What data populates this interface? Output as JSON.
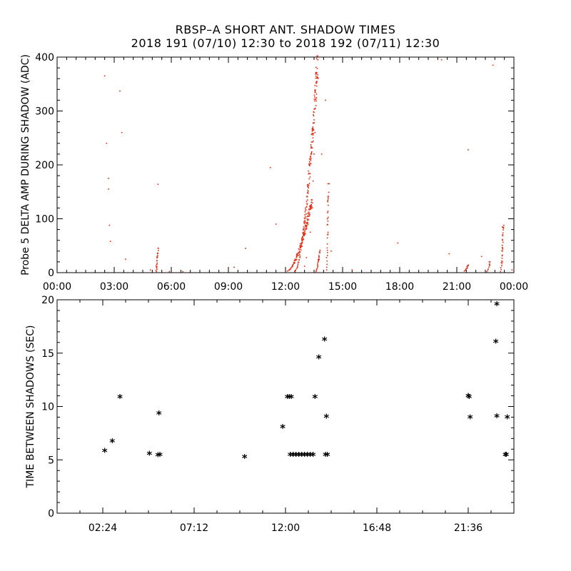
{
  "title_line1": "RBSP–A SHORT ANT. SHADOW TIMES",
  "title_line2": "2018 191 (07/10) 12:30 to 2018 192 (07/11) 12:30",
  "colors": {
    "top_points": "#e8290f",
    "bottom_points": "#000000",
    "axes": "#000000"
  },
  "chart_data": [
    {
      "type": "scatter",
      "ylabel": "Probe 5 DELTA AMP DURING SHADOW (ADC)",
      "xlim": [
        0,
        24
      ],
      "ylim": [
        0,
        400
      ],
      "x_ticks": [
        "00:00",
        "03:00",
        "06:00",
        "09:00",
        "12:00",
        "15:00",
        "18:00",
        "21:00",
        "00:00"
      ],
      "y_ticks": [
        0,
        100,
        200,
        300,
        400
      ],
      "marker": "dot",
      "points": [
        [
          2.5,
          365
        ],
        [
          2.6,
          240
        ],
        [
          2.7,
          175
        ],
        [
          2.7,
          155
        ],
        [
          2.75,
          88
        ],
        [
          2.8,
          58
        ],
        [
          3.3,
          337
        ],
        [
          3.4,
          260
        ],
        [
          3.6,
          25
        ],
        [
          4.9,
          5
        ],
        [
          5.3,
          164
        ],
        [
          5.2,
          12
        ],
        [
          5.9,
          2
        ],
        [
          6.6,
          2
        ],
        [
          9.9,
          45
        ],
        [
          11.2,
          195
        ],
        [
          11.5,
          90
        ],
        [
          9.3,
          10
        ],
        [
          13.0,
          12
        ],
        [
          13.1,
          28
        ],
        [
          13.3,
          75
        ],
        [
          13.4,
          120
        ],
        [
          13.45,
          170
        ],
        [
          13.5,
          220
        ],
        [
          13.55,
          260
        ],
        [
          13.6,
          310
        ],
        [
          13.65,
          355
        ],
        [
          13.7,
          395
        ],
        [
          14.1,
          320
        ],
        [
          13.9,
          220
        ],
        [
          14.3,
          165
        ],
        [
          14.2,
          100
        ],
        [
          14.4,
          40
        ],
        [
          15.5,
          5
        ],
        [
          17.9,
          55
        ],
        [
          20.2,
          395
        ],
        [
          20.6,
          35
        ],
        [
          21.6,
          228
        ],
        [
          22.3,
          30
        ],
        [
          22.7,
          20
        ],
        [
          22.9,
          385
        ],
        [
          23.4,
          85
        ],
        [
          23.4,
          60
        ],
        [
          23.4,
          40
        ],
        [
          23.4,
          20
        ],
        [
          23.9,
          5
        ]
      ],
      "clusters": [
        {
          "x_start": 5.2,
          "x_end": 5.3,
          "y_start": 2,
          "y_end": 47,
          "n": 20
        },
        {
          "x_start": 12.1,
          "x_end": 13.4,
          "y_start": 3,
          "y_end": 135,
          "n": 120
        },
        {
          "x_start": 12.5,
          "x_end": 13.7,
          "y_start": 2,
          "y_end": 402,
          "n": 170
        },
        {
          "x_start": 13.6,
          "x_end": 13.8,
          "y_start": 2,
          "y_end": 42,
          "n": 20
        },
        {
          "x_start": 14.15,
          "x_end": 14.25,
          "y_start": 5,
          "y_end": 165,
          "n": 30
        },
        {
          "x_start": 21.4,
          "x_end": 21.6,
          "y_start": 3,
          "y_end": 15,
          "n": 10
        },
        {
          "x_start": 22.6,
          "x_end": 22.75,
          "y_start": 2,
          "y_end": 20,
          "n": 8
        },
        {
          "x_start": 23.3,
          "x_end": 23.45,
          "y_start": 2,
          "y_end": 88,
          "n": 25
        }
      ]
    },
    {
      "type": "scatter",
      "ylabel": "TIME BETWEEN SHADOWS (SEC)",
      "xlim": [
        0,
        24
      ],
      "ylim": [
        0,
        20
      ],
      "x_tick_values": [
        2.4,
        7.2,
        12.0,
        16.8,
        21.6
      ],
      "x_ticks": [
        "02:24",
        "07:12",
        "12:00",
        "16:48",
        "21:36"
      ],
      "y_ticks": [
        0,
        5,
        10,
        15,
        20
      ],
      "marker": "asterisk",
      "points": [
        [
          2.5,
          5.85
        ],
        [
          2.9,
          6.75
        ],
        [
          3.3,
          10.9
        ],
        [
          4.85,
          5.6
        ],
        [
          5.35,
          9.35
        ],
        [
          5.3,
          5.45
        ],
        [
          5.4,
          5.5
        ],
        [
          9.85,
          5.3
        ],
        [
          11.85,
          8.1
        ],
        [
          12.1,
          10.9
        ],
        [
          12.2,
          10.9
        ],
        [
          12.3,
          10.9
        ],
        [
          12.25,
          5.5
        ],
        [
          12.4,
          5.5
        ],
        [
          12.55,
          5.5
        ],
        [
          12.7,
          5.5
        ],
        [
          12.85,
          5.5
        ],
        [
          13.0,
          5.5
        ],
        [
          13.15,
          5.5
        ],
        [
          13.3,
          5.5
        ],
        [
          13.45,
          5.5
        ],
        [
          13.55,
          10.9
        ],
        [
          13.75,
          14.6
        ],
        [
          14.05,
          16.3
        ],
        [
          14.1,
          5.5
        ],
        [
          14.2,
          5.5
        ],
        [
          14.15,
          9.05
        ],
        [
          21.6,
          11.0
        ],
        [
          21.65,
          10.9
        ],
        [
          21.7,
          9.0
        ],
        [
          23.1,
          19.6
        ],
        [
          23.05,
          16.1
        ],
        [
          23.1,
          9.1
        ],
        [
          23.65,
          9.0
        ],
        [
          23.55,
          5.5
        ],
        [
          23.6,
          5.5
        ]
      ]
    }
  ]
}
